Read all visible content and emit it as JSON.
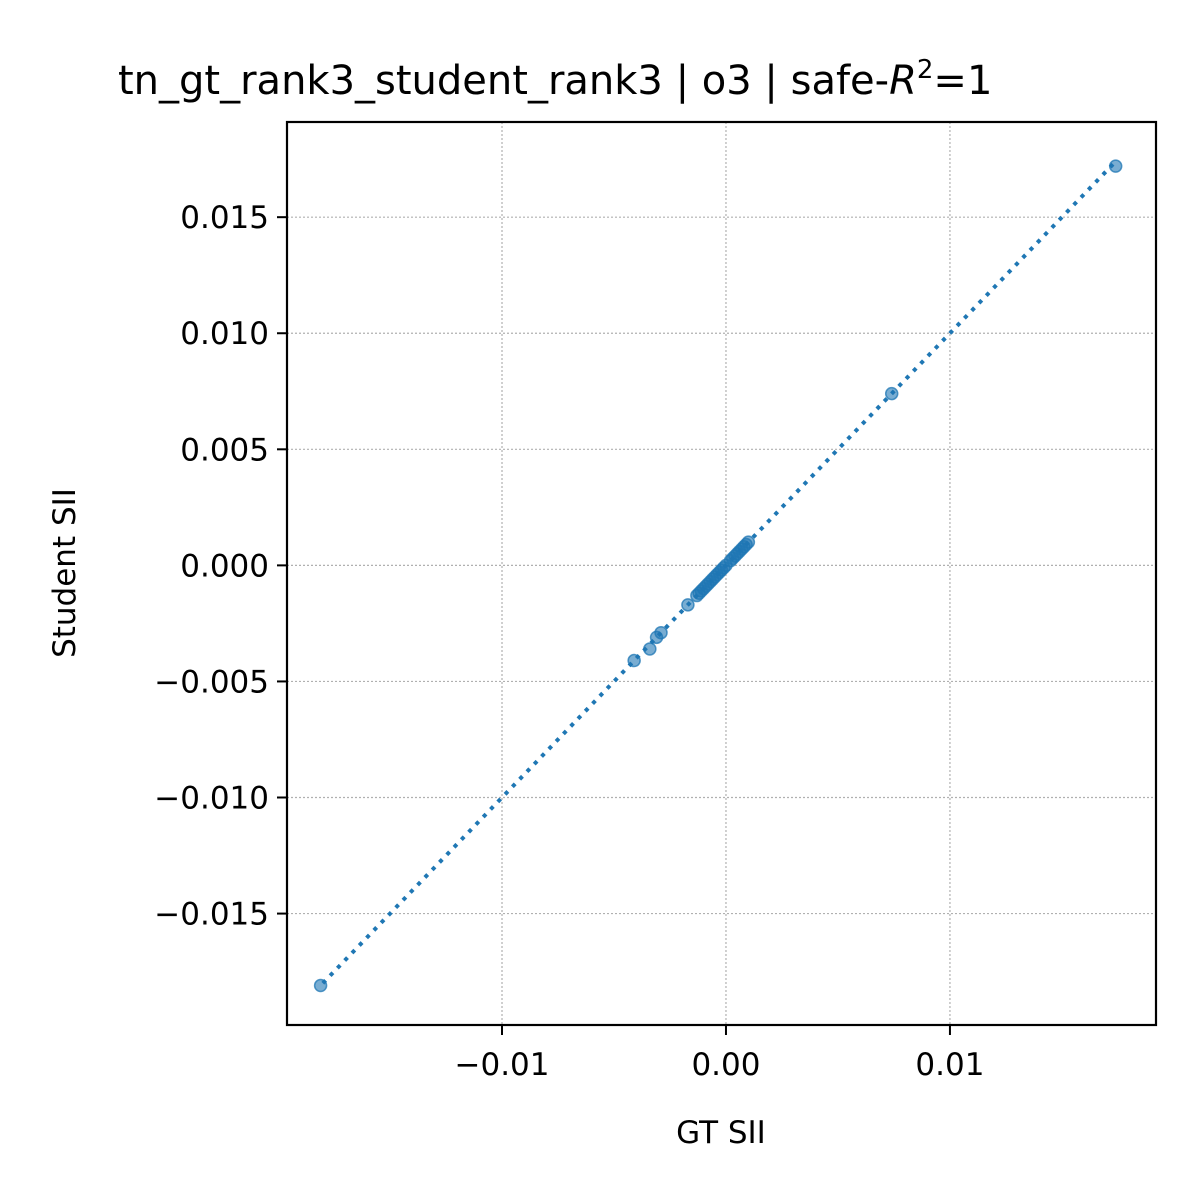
{
  "chart_data": {
    "type": "scatter",
    "title": "tn_gt_rank3_student_rank3 | o3 | safe-",
    "title_r": "R",
    "title_sup": "2",
    "title_tail": "=1",
    "xlabel": "GT SII",
    "ylabel": "Student SII",
    "xlim": [
      -0.0196,
      0.0192
    ],
    "ylim": [
      -0.0198,
      0.0191
    ],
    "grid": true,
    "xticks": [
      -0.01,
      0.0,
      0.01
    ],
    "xtick_labels": [
      "−0.01",
      "0.00",
      "0.01"
    ],
    "yticks": [
      0.015,
      0.01,
      0.005,
      0.0,
      -0.005,
      -0.01,
      -0.015
    ],
    "ytick_labels": [
      "0.015",
      "0.010",
      "0.005",
      "0.000",
      "−0.005",
      "−0.010",
      "−0.015"
    ],
    "reference_line": {
      "style": "dotted",
      "from": [
        -0.018,
        -0.018
      ],
      "to": [
        0.0174,
        0.0174
      ]
    },
    "series": [
      {
        "color": "#1f77b4",
        "points": [
          {
            "x": -0.0181,
            "y": -0.0181
          },
          {
            "x": -0.0041,
            "y": -0.0041
          },
          {
            "x": -0.0034,
            "y": -0.0036
          },
          {
            "x": -0.0031,
            "y": -0.0031
          },
          {
            "x": -0.0029,
            "y": -0.0029
          },
          {
            "x": -0.0017,
            "y": -0.0017
          },
          {
            "x": -0.0013,
            "y": -0.0013
          },
          {
            "x": -0.0012,
            "y": -0.0012
          },
          {
            "x": -0.0011,
            "y": -0.0011
          },
          {
            "x": -0.001,
            "y": -0.001
          },
          {
            "x": -0.0009,
            "y": -0.0009
          },
          {
            "x": -0.0008,
            "y": -0.0008
          },
          {
            "x": -0.0007,
            "y": -0.0007
          },
          {
            "x": -0.0006,
            "y": -0.0006
          },
          {
            "x": -0.0005,
            "y": -0.0005
          },
          {
            "x": -0.0004,
            "y": -0.0004
          },
          {
            "x": -0.0003,
            "y": -0.0003
          },
          {
            "x": -0.0002,
            "y": -0.0002
          },
          {
            "x": -0.0001,
            "y": -0.0001
          },
          {
            "x": 0.0,
            "y": 0.0
          },
          {
            "x": 0.0002,
            "y": 0.0002
          },
          {
            "x": 0.0003,
            "y": 0.0003
          },
          {
            "x": 0.0004,
            "y": 0.0004
          },
          {
            "x": 0.0005,
            "y": 0.0005
          },
          {
            "x": 0.0006,
            "y": 0.0006
          },
          {
            "x": 0.0007,
            "y": 0.0007
          },
          {
            "x": 0.0008,
            "y": 0.0008
          },
          {
            "x": 0.0009,
            "y": 0.0009
          },
          {
            "x": 0.001,
            "y": 0.001
          },
          {
            "x": 0.0074,
            "y": 0.0074
          },
          {
            "x": 0.0174,
            "y": 0.0172
          }
        ]
      }
    ]
  }
}
